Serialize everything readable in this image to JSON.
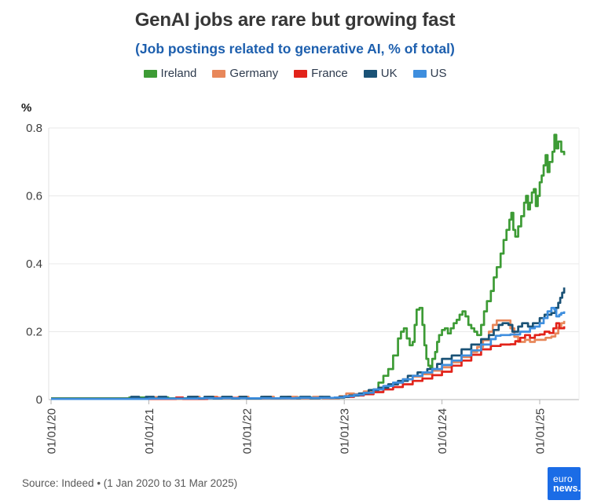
{
  "chart_data": {
    "type": "line",
    "title": "GenAI jobs are rare but growing fast",
    "subtitle": "(Job postings related to generative AI, % of total)",
    "ylabel": "%",
    "legend_position": "top",
    "grid": true,
    "x_axis": {
      "tick_labels": [
        "01/01/20",
        "01/01/21",
        "01/01/22",
        "01/01/23",
        "01/01/24",
        "01/01/25"
      ],
      "tick_years": [
        0,
        1,
        2,
        3,
        4,
        5
      ],
      "range_years": [
        0,
        5.4
      ]
    },
    "y_axis": {
      "tick_labels": [
        "0",
        "0.2",
        "0.4",
        "0.6",
        "0.8"
      ],
      "ticks": [
        0,
        0.2,
        0.4,
        0.6,
        0.8
      ],
      "range": [
        0,
        0.8
      ]
    },
    "series": [
      {
        "name": "Ireland",
        "color": "#3d9b35",
        "points": [
          [
            0,
            0.004
          ],
          [
            0.4,
            0.004
          ],
          [
            0.8,
            0.006
          ],
          [
            1.2,
            0.004
          ],
          [
            1.6,
            0.005
          ],
          [
            2.0,
            0.004
          ],
          [
            2.4,
            0.006
          ],
          [
            2.8,
            0.005
          ],
          [
            3.0,
            0.01
          ],
          [
            3.1,
            0.015
          ],
          [
            3.2,
            0.022
          ],
          [
            3.3,
            0.03
          ],
          [
            3.35,
            0.05
          ],
          [
            3.4,
            0.07
          ],
          [
            3.45,
            0.09
          ],
          [
            3.5,
            0.13
          ],
          [
            3.55,
            0.18
          ],
          [
            3.58,
            0.2
          ],
          [
            3.61,
            0.21
          ],
          [
            3.64,
            0.18
          ],
          [
            3.67,
            0.16
          ],
          [
            3.7,
            0.17
          ],
          [
            3.72,
            0.22
          ],
          [
            3.74,
            0.265
          ],
          [
            3.77,
            0.27
          ],
          [
            3.8,
            0.22
          ],
          [
            3.82,
            0.16
          ],
          [
            3.84,
            0.12
          ],
          [
            3.86,
            0.1
          ],
          [
            3.88,
            0.09
          ],
          [
            3.9,
            0.12
          ],
          [
            3.93,
            0.14
          ],
          [
            3.95,
            0.17
          ],
          [
            3.97,
            0.19
          ],
          [
            4.0,
            0.205
          ],
          [
            4.03,
            0.21
          ],
          [
            4.06,
            0.195
          ],
          [
            4.09,
            0.21
          ],
          [
            4.12,
            0.225
          ],
          [
            4.15,
            0.235
          ],
          [
            4.18,
            0.25
          ],
          [
            4.21,
            0.26
          ],
          [
            4.24,
            0.245
          ],
          [
            4.27,
            0.22
          ],
          [
            4.3,
            0.21
          ],
          [
            4.33,
            0.2
          ],
          [
            4.36,
            0.19
          ],
          [
            4.4,
            0.22
          ],
          [
            4.43,
            0.26
          ],
          [
            4.46,
            0.29
          ],
          [
            4.5,
            0.32
          ],
          [
            4.53,
            0.36
          ],
          [
            4.56,
            0.39
          ],
          [
            4.6,
            0.43
          ],
          [
            4.63,
            0.47
          ],
          [
            4.66,
            0.5
          ],
          [
            4.69,
            0.53
          ],
          [
            4.71,
            0.55
          ],
          [
            4.73,
            0.5
          ],
          [
            4.75,
            0.48
          ],
          [
            4.78,
            0.51
          ],
          [
            4.81,
            0.54
          ],
          [
            4.84,
            0.58
          ],
          [
            4.86,
            0.6
          ],
          [
            4.88,
            0.56
          ],
          [
            4.9,
            0.58
          ],
          [
            4.92,
            0.61
          ],
          [
            4.94,
            0.62
          ],
          [
            4.96,
            0.57
          ],
          [
            4.98,
            0.6
          ],
          [
            5.0,
            0.64
          ],
          [
            5.02,
            0.66
          ],
          [
            5.04,
            0.69
          ],
          [
            5.06,
            0.72
          ],
          [
            5.08,
            0.67
          ],
          [
            5.1,
            0.7
          ],
          [
            5.13,
            0.73
          ],
          [
            5.15,
            0.78
          ],
          [
            5.17,
            0.74
          ],
          [
            5.19,
            0.76
          ],
          [
            5.22,
            0.73
          ],
          [
            5.25,
            0.72
          ]
        ]
      },
      {
        "name": "Germany",
        "color": "#e8875a",
        "points": [
          [
            0,
            0.002
          ],
          [
            0.92,
            0.002
          ],
          [
            1.0,
            0.007
          ],
          [
            1.08,
            0.002
          ],
          [
            1.42,
            0.008
          ],
          [
            1.52,
            0.003
          ],
          [
            1.6,
            0.008
          ],
          [
            1.7,
            0.003
          ],
          [
            1.92,
            0.008
          ],
          [
            2.02,
            0.003
          ],
          [
            2.18,
            0.008
          ],
          [
            2.28,
            0.004
          ],
          [
            2.42,
            0.008
          ],
          [
            2.52,
            0.004
          ],
          [
            2.68,
            0.008
          ],
          [
            2.78,
            0.004
          ],
          [
            2.95,
            0.01
          ],
          [
            3.02,
            0.018
          ],
          [
            3.1,
            0.016
          ],
          [
            3.2,
            0.024
          ],
          [
            3.3,
            0.03
          ],
          [
            3.4,
            0.04
          ],
          [
            3.5,
            0.05
          ],
          [
            3.6,
            0.06
          ],
          [
            3.7,
            0.068
          ],
          [
            3.8,
            0.075
          ],
          [
            3.9,
            0.085
          ],
          [
            4.0,
            0.095
          ],
          [
            4.1,
            0.11
          ],
          [
            4.2,
            0.125
          ],
          [
            4.3,
            0.14
          ],
          [
            4.36,
            0.155
          ],
          [
            4.42,
            0.175
          ],
          [
            4.48,
            0.2
          ],
          [
            4.52,
            0.22
          ],
          [
            4.56,
            0.233
          ],
          [
            4.66,
            0.233
          ],
          [
            4.7,
            0.21
          ],
          [
            4.74,
            0.185
          ],
          [
            4.78,
            0.17
          ],
          [
            4.85,
            0.176
          ],
          [
            4.9,
            0.17
          ],
          [
            4.95,
            0.176
          ],
          [
            5.0,
            0.176
          ],
          [
            5.06,
            0.182
          ],
          [
            5.12,
            0.186
          ],
          [
            5.16,
            0.195
          ],
          [
            5.19,
            0.212
          ],
          [
            5.22,
            0.225
          ],
          [
            5.25,
            0.232
          ]
        ]
      },
      {
        "name": "France",
        "color": "#e2231a",
        "points": [
          [
            0,
            0.002
          ],
          [
            1.0,
            0.002
          ],
          [
            1.28,
            0.006
          ],
          [
            1.35,
            0.002
          ],
          [
            1.6,
            0.005
          ],
          [
            2.0,
            0.004
          ],
          [
            2.5,
            0.005
          ],
          [
            2.9,
            0.006
          ],
          [
            3.0,
            0.008
          ],
          [
            3.1,
            0.012
          ],
          [
            3.2,
            0.016
          ],
          [
            3.3,
            0.022
          ],
          [
            3.4,
            0.03
          ],
          [
            3.5,
            0.037
          ],
          [
            3.6,
            0.045
          ],
          [
            3.7,
            0.055
          ],
          [
            3.8,
            0.062
          ],
          [
            3.9,
            0.072
          ],
          [
            4.0,
            0.082
          ],
          [
            4.1,
            0.1
          ],
          [
            4.2,
            0.115
          ],
          [
            4.3,
            0.132
          ],
          [
            4.4,
            0.148
          ],
          [
            4.5,
            0.158
          ],
          [
            4.6,
            0.162
          ],
          [
            4.7,
            0.163
          ],
          [
            4.75,
            0.172
          ],
          [
            4.8,
            0.182
          ],
          [
            4.85,
            0.19
          ],
          [
            4.9,
            0.182
          ],
          [
            4.95,
            0.19
          ],
          [
            5.0,
            0.192
          ],
          [
            5.05,
            0.2
          ],
          [
            5.1,
            0.196
          ],
          [
            5.14,
            0.21
          ],
          [
            5.17,
            0.225
          ],
          [
            5.2,
            0.21
          ],
          [
            5.25,
            0.216
          ]
        ]
      },
      {
        "name": "UK",
        "color": "#1a5276",
        "points": [
          [
            0,
            0.002
          ],
          [
            0.75,
            0.002
          ],
          [
            0.82,
            0.008
          ],
          [
            0.9,
            0.003
          ],
          [
            0.97,
            0.008
          ],
          [
            1.05,
            0.003
          ],
          [
            1.1,
            0.008
          ],
          [
            1.18,
            0.003
          ],
          [
            1.4,
            0.008
          ],
          [
            1.5,
            0.003
          ],
          [
            1.57,
            0.008
          ],
          [
            1.66,
            0.003
          ],
          [
            1.75,
            0.008
          ],
          [
            1.85,
            0.003
          ],
          [
            1.93,
            0.008
          ],
          [
            2.0,
            0.003
          ],
          [
            2.15,
            0.008
          ],
          [
            2.25,
            0.004
          ],
          [
            2.35,
            0.008
          ],
          [
            2.45,
            0.004
          ],
          [
            2.55,
            0.008
          ],
          [
            2.65,
            0.004
          ],
          [
            2.75,
            0.008
          ],
          [
            2.85,
            0.005
          ],
          [
            2.95,
            0.008
          ],
          [
            3.05,
            0.012
          ],
          [
            3.15,
            0.018
          ],
          [
            3.25,
            0.028
          ],
          [
            3.35,
            0.035
          ],
          [
            3.45,
            0.045
          ],
          [
            3.55,
            0.055
          ],
          [
            3.65,
            0.07
          ],
          [
            3.75,
            0.08
          ],
          [
            3.85,
            0.09
          ],
          [
            3.95,
            0.105
          ],
          [
            4.0,
            0.12
          ],
          [
            4.1,
            0.13
          ],
          [
            4.2,
            0.148
          ],
          [
            4.3,
            0.162
          ],
          [
            4.4,
            0.178
          ],
          [
            4.48,
            0.19
          ],
          [
            4.53,
            0.205
          ],
          [
            4.58,
            0.22
          ],
          [
            4.62,
            0.225
          ],
          [
            4.68,
            0.22
          ],
          [
            4.72,
            0.2
          ],
          [
            4.78,
            0.215
          ],
          [
            4.82,
            0.225
          ],
          [
            4.88,
            0.215
          ],
          [
            4.93,
            0.225
          ],
          [
            5.0,
            0.24
          ],
          [
            5.05,
            0.25
          ],
          [
            5.12,
            0.255
          ],
          [
            5.16,
            0.27
          ],
          [
            5.19,
            0.285
          ],
          [
            5.21,
            0.3
          ],
          [
            5.23,
            0.315
          ],
          [
            5.25,
            0.33
          ]
        ]
      },
      {
        "name": "US",
        "color": "#3e8ede",
        "points": [
          [
            0,
            0.002
          ],
          [
            0.5,
            0.002
          ],
          [
            1.0,
            0.003
          ],
          [
            1.5,
            0.004
          ],
          [
            2.0,
            0.004
          ],
          [
            2.5,
            0.005
          ],
          [
            2.9,
            0.006
          ],
          [
            3.0,
            0.01
          ],
          [
            3.1,
            0.014
          ],
          [
            3.2,
            0.02
          ],
          [
            3.3,
            0.03
          ],
          [
            3.4,
            0.04
          ],
          [
            3.5,
            0.05
          ],
          [
            3.6,
            0.06
          ],
          [
            3.7,
            0.07
          ],
          [
            3.8,
            0.08
          ],
          [
            3.9,
            0.09
          ],
          [
            4.0,
            0.102
          ],
          [
            4.1,
            0.115
          ],
          [
            4.2,
            0.13
          ],
          [
            4.3,
            0.145
          ],
          [
            4.4,
            0.162
          ],
          [
            4.5,
            0.178
          ],
          [
            4.55,
            0.188
          ],
          [
            4.6,
            0.19
          ],
          [
            4.7,
            0.192
          ],
          [
            4.8,
            0.2
          ],
          [
            4.9,
            0.21
          ],
          [
            4.95,
            0.215
          ],
          [
            5.0,
            0.225
          ],
          [
            5.04,
            0.24
          ],
          [
            5.08,
            0.26
          ],
          [
            5.12,
            0.27
          ],
          [
            5.15,
            0.265
          ],
          [
            5.17,
            0.245
          ],
          [
            5.2,
            0.25
          ],
          [
            5.22,
            0.255
          ],
          [
            5.25,
            0.26
          ]
        ]
      }
    ]
  },
  "footer": {
    "source": "Source: Indeed • (1 Jan 2020 to 31 Mar 2025)"
  },
  "logo": {
    "line1": "euro",
    "line2": "news."
  }
}
